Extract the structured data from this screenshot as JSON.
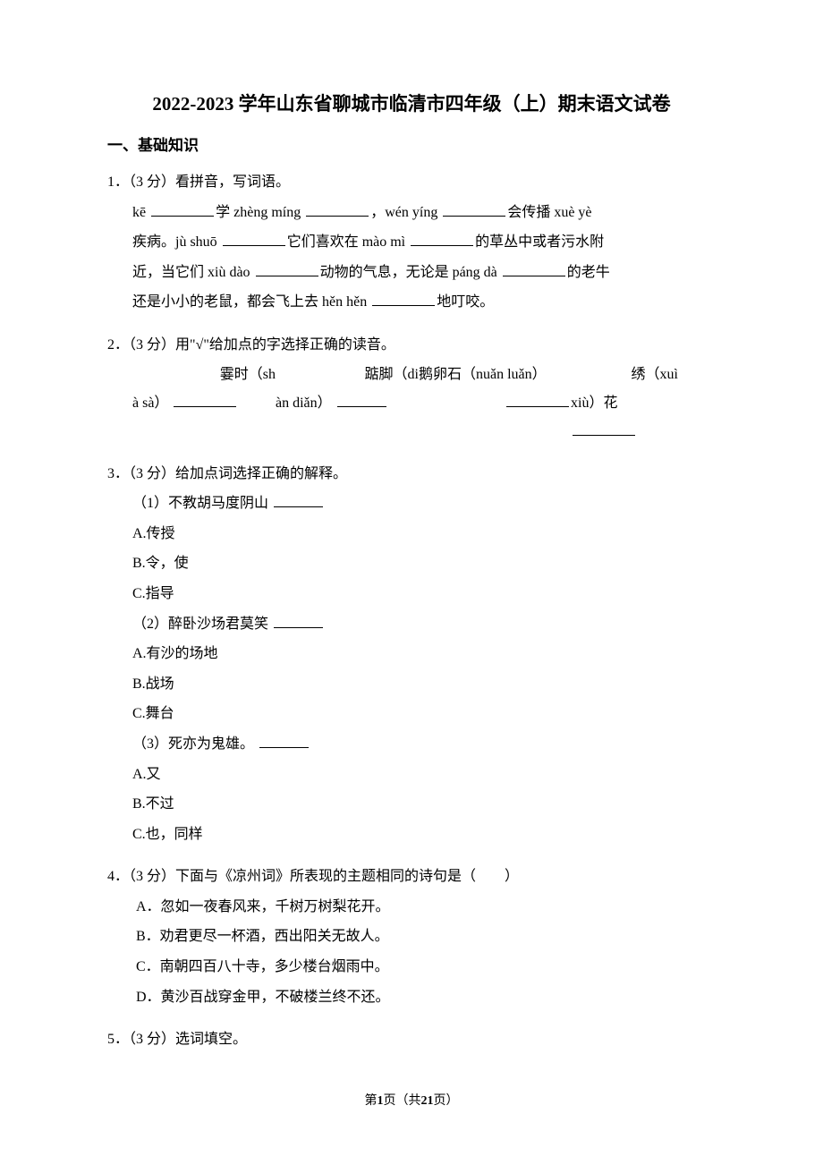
{
  "title": "2022-2023 学年山东省聊城市临清市四年级（上）期末语文试卷",
  "section": "一、基础知识",
  "q1": {
    "num": "1．",
    "points": "（3 分）",
    "stem": "看拼音，写词语。",
    "line1_a": "kē",
    "line1_b": "学 zhèng míng",
    "line1_c": "，wén yíng",
    "line1_d": "会传播 xuè yè",
    "line2_a": "疾病。jù shuō",
    "line2_b": "它们喜欢在 mào mì",
    "line2_c": "的草丛中或者污水附",
    "line3_a": "近，当它们 xiù dào",
    "line3_b": "动物的气息，无论是 páng dà",
    "line3_c": "的老牛",
    "line4_a": "还是小小的老鼠，都会飞上去 hěn hěn",
    "line4_b": "地叮咬。"
  },
  "q2": {
    "num": "2．",
    "points": "（3 分）",
    "stem": "用\"√\"给加点的字选择正确的读音。",
    "c1r1": "霎时（sh",
    "c1r2": "à sà）",
    "c2r1": "踮脚（di",
    "c2r2": "àn diǎn）",
    "c3r1": "鹅卵石（nuǎn luǎn）",
    "c4r1": "绣（xuì",
    "c4r2": "xiù）花"
  },
  "q3": {
    "num": "3．",
    "points": "（3 分）",
    "stem": "给加点词选择正确的解释。",
    "sub1": "（1）不教胡马度阴山",
    "s1a": "A.传授",
    "s1b": "B.令，使",
    "s1c": "C.指导",
    "sub2": "（2）醉卧沙场君莫笑",
    "s2a": "A.有沙的场地",
    "s2b": "B.战场",
    "s2c": "C.舞台",
    "sub3": "（3）死亦为鬼雄。",
    "s3a": "A.又",
    "s3b": "B.不过",
    "s3c": "C.也，同样"
  },
  "q4": {
    "num": "4．",
    "points": "（3 分）",
    "stem": "下面与《凉州词》所表现的主题相同的诗句是（　　）",
    "a": "A．忽如一夜春风来，千树万树梨花开。",
    "b": "B．劝君更尽一杯酒，西出阳关无故人。",
    "c": "C．南朝四百八十寺，多少楼台烟雨中。",
    "d": "D．黄沙百战穿金甲，不破楼兰终不还。"
  },
  "q5": {
    "num": "5．",
    "points": "（3 分）",
    "stem": "选词填空。"
  },
  "footer": {
    "prefix": "第",
    "page": "1",
    "mid": "页（共",
    "total": "21",
    "suffix": "页）"
  }
}
